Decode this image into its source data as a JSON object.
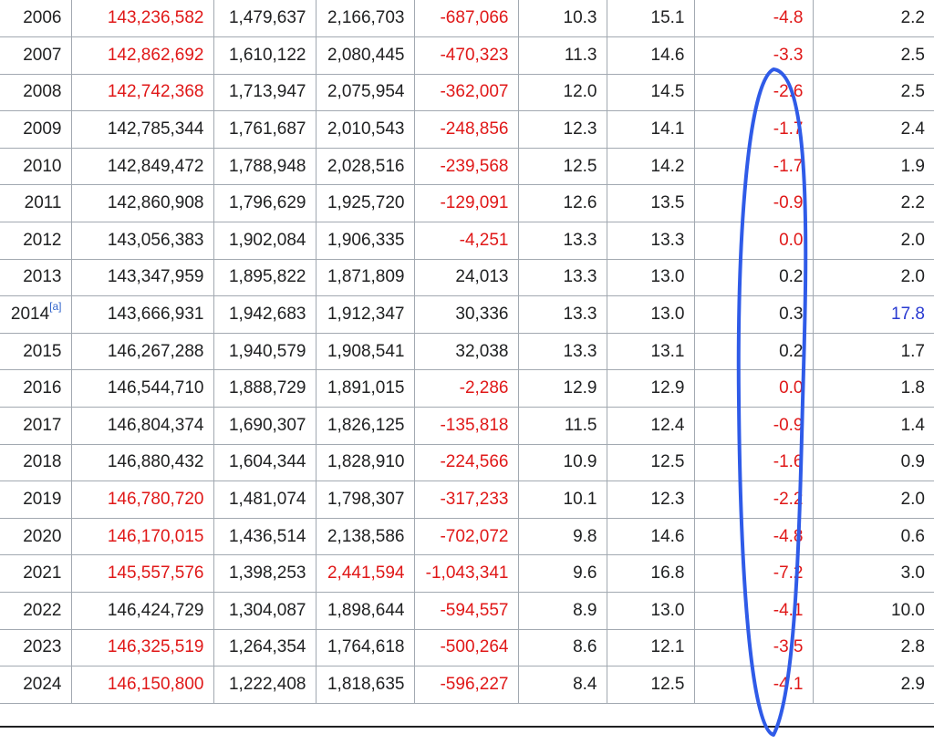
{
  "table": {
    "rows": [
      {
        "year": "2006",
        "year_note": "",
        "population": "143,236,582",
        "pop_red": true,
        "births": "1,479,637",
        "deaths": "2,166,703",
        "deaths_red": false,
        "natural_change": "-687,066",
        "nc_red": true,
        "birth_rate": "10.3",
        "death_rate": "15.1",
        "nat_change_rate": "-4.8",
        "ncr_red": true,
        "tfr": "2.2",
        "tfr_blue": false
      },
      {
        "year": "2007",
        "year_note": "",
        "population": "142,862,692",
        "pop_red": true,
        "births": "1,610,122",
        "deaths": "2,080,445",
        "deaths_red": false,
        "natural_change": "-470,323",
        "nc_red": true,
        "birth_rate": "11.3",
        "death_rate": "14.6",
        "nat_change_rate": "-3.3",
        "ncr_red": true,
        "tfr": "2.5",
        "tfr_blue": false
      },
      {
        "year": "2008",
        "year_note": "",
        "population": "142,742,368",
        "pop_red": true,
        "births": "1,713,947",
        "deaths": "2,075,954",
        "deaths_red": false,
        "natural_change": "-362,007",
        "nc_red": true,
        "birth_rate": "12.0",
        "death_rate": "14.5",
        "nat_change_rate": "-2.6",
        "ncr_red": true,
        "tfr": "2.5",
        "tfr_blue": false
      },
      {
        "year": "2009",
        "year_note": "",
        "population": "142,785,344",
        "pop_red": false,
        "births": "1,761,687",
        "deaths": "2,010,543",
        "deaths_red": false,
        "natural_change": "-248,856",
        "nc_red": true,
        "birth_rate": "12.3",
        "death_rate": "14.1",
        "nat_change_rate": "-1.7",
        "ncr_red": true,
        "tfr": "2.4",
        "tfr_blue": false
      },
      {
        "year": "2010",
        "year_note": "",
        "population": "142,849,472",
        "pop_red": false,
        "births": "1,788,948",
        "deaths": "2,028,516",
        "deaths_red": false,
        "natural_change": "-239,568",
        "nc_red": true,
        "birth_rate": "12.5",
        "death_rate": "14.2",
        "nat_change_rate": "-1.7",
        "ncr_red": true,
        "tfr": "1.9",
        "tfr_blue": false
      },
      {
        "year": "2011",
        "year_note": "",
        "population": "142,860,908",
        "pop_red": false,
        "births": "1,796,629",
        "deaths": "1,925,720",
        "deaths_red": false,
        "natural_change": "-129,091",
        "nc_red": true,
        "birth_rate": "12.6",
        "death_rate": "13.5",
        "nat_change_rate": "-0.9",
        "ncr_red": true,
        "tfr": "2.2",
        "tfr_blue": false
      },
      {
        "year": "2012",
        "year_note": "",
        "population": "143,056,383",
        "pop_red": false,
        "births": "1,902,084",
        "deaths": "1,906,335",
        "deaths_red": false,
        "natural_change": "-4,251",
        "nc_red": true,
        "birth_rate": "13.3",
        "death_rate": "13.3",
        "nat_change_rate": "0.0",
        "ncr_red": true,
        "tfr": "2.0",
        "tfr_blue": false
      },
      {
        "year": "2013",
        "year_note": "",
        "population": "143,347,959",
        "pop_red": false,
        "births": "1,895,822",
        "deaths": "1,871,809",
        "deaths_red": false,
        "natural_change": "24,013",
        "nc_red": false,
        "birth_rate": "13.3",
        "death_rate": "13.0",
        "nat_change_rate": "0.2",
        "ncr_red": false,
        "tfr": "2.0",
        "tfr_blue": false
      },
      {
        "year": "2014",
        "year_note": "[a]",
        "population": "143,666,931",
        "pop_red": false,
        "births": "1,942,683",
        "deaths": "1,912,347",
        "deaths_red": false,
        "natural_change": "30,336",
        "nc_red": false,
        "birth_rate": "13.3",
        "death_rate": "13.0",
        "nat_change_rate": "0.3",
        "ncr_red": false,
        "tfr": "17.8",
        "tfr_blue": true
      },
      {
        "year": "2015",
        "year_note": "",
        "population": "146,267,288",
        "pop_red": false,
        "births": "1,940,579",
        "deaths": "1,908,541",
        "deaths_red": false,
        "natural_change": "32,038",
        "nc_red": false,
        "birth_rate": "13.3",
        "death_rate": "13.1",
        "nat_change_rate": "0.2",
        "ncr_red": false,
        "tfr": "1.7",
        "tfr_blue": false
      },
      {
        "year": "2016",
        "year_note": "",
        "population": "146,544,710",
        "pop_red": false,
        "births": "1,888,729",
        "deaths": "1,891,015",
        "deaths_red": false,
        "natural_change": "-2,286",
        "nc_red": true,
        "birth_rate": "12.9",
        "death_rate": "12.9",
        "nat_change_rate": "0.0",
        "ncr_red": true,
        "tfr": "1.8",
        "tfr_blue": false
      },
      {
        "year": "2017",
        "year_note": "",
        "population": "146,804,374",
        "pop_red": false,
        "births": "1,690,307",
        "deaths": "1,826,125",
        "deaths_red": false,
        "natural_change": "-135,818",
        "nc_red": true,
        "birth_rate": "11.5",
        "death_rate": "12.4",
        "nat_change_rate": "-0.9",
        "ncr_red": true,
        "tfr": "1.4",
        "tfr_blue": false
      },
      {
        "year": "2018",
        "year_note": "",
        "population": "146,880,432",
        "pop_red": false,
        "births": "1,604,344",
        "deaths": "1,828,910",
        "deaths_red": false,
        "natural_change": "-224,566",
        "nc_red": true,
        "birth_rate": "10.9",
        "death_rate": "12.5",
        "nat_change_rate": "-1.6",
        "ncr_red": true,
        "tfr": "0.9",
        "tfr_blue": false
      },
      {
        "year": "2019",
        "year_note": "",
        "population": "146,780,720",
        "pop_red": true,
        "births": "1,481,074",
        "deaths": "1,798,307",
        "deaths_red": false,
        "natural_change": "-317,233",
        "nc_red": true,
        "birth_rate": "10.1",
        "death_rate": "12.3",
        "nat_change_rate": "-2.2",
        "ncr_red": true,
        "tfr": "2.0",
        "tfr_blue": false
      },
      {
        "year": "2020",
        "year_note": "",
        "population": "146,170,015",
        "pop_red": true,
        "births": "1,436,514",
        "deaths": "2,138,586",
        "deaths_red": false,
        "natural_change": "-702,072",
        "nc_red": true,
        "birth_rate": "9.8",
        "death_rate": "14.6",
        "nat_change_rate": "-4.8",
        "ncr_red": true,
        "tfr": "0.6",
        "tfr_blue": false
      },
      {
        "year": "2021",
        "year_note": "",
        "population": "145,557,576",
        "pop_red": true,
        "births": "1,398,253",
        "deaths": "2,441,594",
        "deaths_red": true,
        "natural_change": "-1,043,341",
        "nc_red": true,
        "birth_rate": "9.6",
        "death_rate": "16.8",
        "nat_change_rate": "-7.2",
        "ncr_red": true,
        "tfr": "3.0",
        "tfr_blue": false
      },
      {
        "year": "2022",
        "year_note": "",
        "population": "146,424,729",
        "pop_red": false,
        "births": "1,304,087",
        "deaths": "1,898,644",
        "deaths_red": false,
        "natural_change": "-594,557",
        "nc_red": true,
        "birth_rate": "8.9",
        "death_rate": "13.0",
        "nat_change_rate": "-4.1",
        "ncr_red": true,
        "tfr": "10.0",
        "tfr_blue": false
      },
      {
        "year": "2023",
        "year_note": "",
        "population": "146,325,519",
        "pop_red": true,
        "births": "1,264,354",
        "deaths": "1,764,618",
        "deaths_red": false,
        "natural_change": "-500,264",
        "nc_red": true,
        "birth_rate": "8.6",
        "death_rate": "12.1",
        "nat_change_rate": "-3.5",
        "ncr_red": true,
        "tfr": "2.8",
        "tfr_blue": false
      },
      {
        "year": "2024",
        "year_note": "",
        "population": "146,150,800",
        "pop_red": true,
        "births": "1,222,408",
        "deaths": "1,818,635",
        "deaths_red": false,
        "natural_change": "-596,227",
        "nc_red": true,
        "birth_rate": "8.4",
        "death_rate": "12.5",
        "nat_change_rate": "-4.1",
        "ncr_red": true,
        "tfr": "2.9",
        "tfr_blue": false
      }
    ]
  },
  "colors": {
    "text": "#202122",
    "negative_red": "#e01818",
    "link_blue": "#2a3bd1",
    "cite_blue": "#3366cc",
    "grid": "#a2a9b1",
    "highlight_ellipse": "#2f5be8"
  },
  "annotation": {
    "shape": "hand-drawn ellipse",
    "highlights_column": "nat_change_rate"
  }
}
